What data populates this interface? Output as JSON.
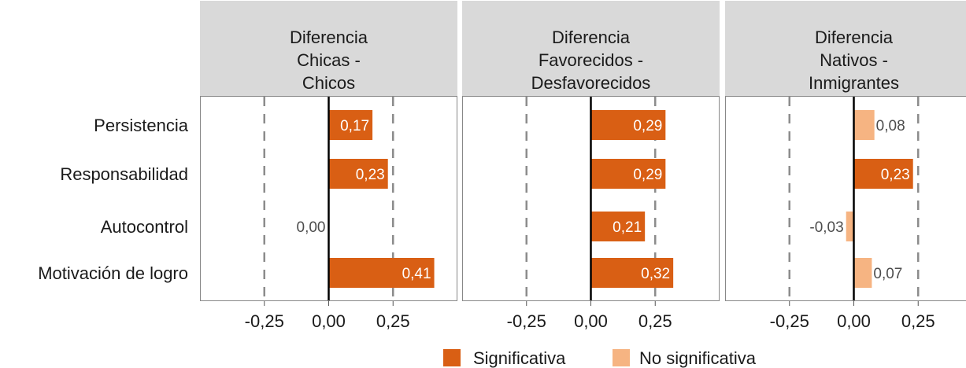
{
  "chart_data": {
    "type": "bar",
    "orientation": "horizontal",
    "categories": [
      "Persistencia",
      "Responsabilidad",
      "Autocontrol",
      "Motivación de logro"
    ],
    "xlim": [
      -0.5,
      0.5
    ],
    "xticks": [
      {
        "value": -0.25,
        "label": "-0,25"
      },
      {
        "value": 0.0,
        "label": "0,00"
      },
      {
        "value": 0.25,
        "label": "0,25"
      }
    ],
    "reference_lines": [
      -0.25,
      0.25
    ],
    "colors": {
      "Significativa": "#d95f14",
      "No significativa": "#f6b482"
    },
    "legend": {
      "position": "bottom",
      "items": [
        {
          "key": "Significativa",
          "label": "Significativa"
        },
        {
          "key": "No significativa",
          "label": "No significativa"
        }
      ]
    },
    "panels": [
      {
        "title_lines": [
          "Diferencia",
          "Chicas -",
          "Chicos"
        ],
        "values": [
          0.17,
          0.23,
          0.0,
          0.41
        ],
        "labels": [
          "0,17",
          "0,23",
          "0,00",
          "0,41"
        ],
        "significance": [
          "Significativa",
          "Significativa",
          "Significativa",
          "Significativa"
        ]
      },
      {
        "title_lines": [
          "Diferencia",
          "Favorecidos -",
          "Desfavorecidos"
        ],
        "values": [
          0.29,
          0.29,
          0.21,
          0.32
        ],
        "labels": [
          "0,29",
          "0,29",
          "0,21",
          "0,32"
        ],
        "significance": [
          "Significativa",
          "Significativa",
          "Significativa",
          "Significativa"
        ]
      },
      {
        "title_lines": [
          "Diferencia",
          "Nativos -",
          "Inmigrantes"
        ],
        "values": [
          0.08,
          0.23,
          -0.03,
          0.07
        ],
        "labels": [
          "0,08",
          "0,23",
          "-0,03",
          "0,07"
        ],
        "significance": [
          "No significativa",
          "Significativa",
          "No significativa",
          "No significativa"
        ]
      }
    ]
  }
}
